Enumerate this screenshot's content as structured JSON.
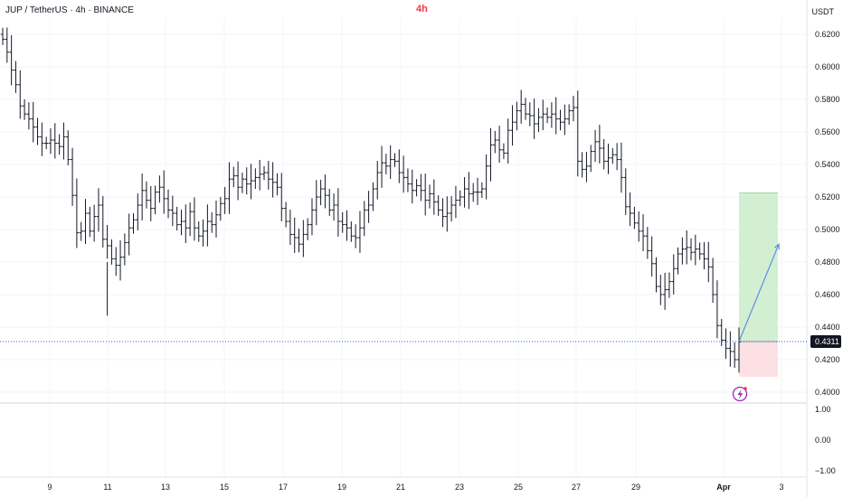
{
  "header": {
    "symbol_line": "JUP / TetherUS · 4h · BINANCE",
    "interval_badge": "4h",
    "currency": "USDT"
  },
  "colors": {
    "bar": "#131722",
    "interval": "#f23645",
    "current_price_line": "#2962ff",
    "target_zone": "#d3efd2",
    "stop_zone": "#fde0e3",
    "projection_arrow": "#5b8ee6",
    "flash_icon": "#9c27b0"
  },
  "icons": {
    "event_marker": "flash-icon"
  },
  "chart_data": {
    "type": "ohlc",
    "title": "",
    "ylim": [
      0.395,
      0.628
    ],
    "price_ticks": [
      "0.6200",
      "0.6000",
      "0.5800",
      "0.5600",
      "0.5400",
      "0.5200",
      "0.5000",
      "0.4800",
      "0.4600",
      "0.4400",
      "0.4200",
      "0.4000"
    ],
    "current_price": 0.4311,
    "current_price_label": "0.4311",
    "date_labels": [
      "9",
      "11",
      "13",
      "15",
      "17",
      "19",
      "21",
      "23",
      "25",
      "27",
      "29",
      "Apr",
      "3"
    ],
    "indicator_ticks": [
      "1.00",
      "0.00",
      "−1.00"
    ],
    "closes": [
      0.617,
      0.609,
      0.598,
      0.589,
      0.576,
      0.571,
      0.568,
      0.563,
      0.557,
      0.553,
      0.553,
      0.555,
      0.553,
      0.551,
      0.557,
      0.543,
      0.521,
      0.498,
      0.499,
      0.51,
      0.499,
      0.508,
      0.515,
      0.494,
      0.49,
      0.482,
      0.478,
      0.483,
      0.492,
      0.501,
      0.506,
      0.515,
      0.524,
      0.518,
      0.513,
      0.523,
      0.526,
      0.519,
      0.512,
      0.51,
      0.503,
      0.505,
      0.501,
      0.511,
      0.501,
      0.496,
      0.499,
      0.505,
      0.503,
      0.509,
      0.516,
      0.519,
      0.531,
      0.533,
      0.526,
      0.531,
      0.528,
      0.53,
      0.532,
      0.534,
      0.535,
      0.531,
      0.529,
      0.526,
      0.513,
      0.505,
      0.497,
      0.495,
      0.491,
      0.497,
      0.503,
      0.512,
      0.52,
      0.525,
      0.521,
      0.512,
      0.515,
      0.505,
      0.503,
      0.501,
      0.496,
      0.495,
      0.501,
      0.512,
      0.515,
      0.525,
      0.535,
      0.541,
      0.539,
      0.543,
      0.542,
      0.535,
      0.532,
      0.528,
      0.524,
      0.527,
      0.524,
      0.518,
      0.522,
      0.517,
      0.512,
      0.508,
      0.51,
      0.515,
      0.518,
      0.52,
      0.525,
      0.522,
      0.523,
      0.523,
      0.525,
      0.539,
      0.552,
      0.555,
      0.549,
      0.547,
      0.561,
      0.566,
      0.573,
      0.577,
      0.571,
      0.57,
      0.565,
      0.569,
      0.571,
      0.569,
      0.571,
      0.568,
      0.566,
      0.568,
      0.573,
      0.575,
      0.542,
      0.537,
      0.539,
      0.548,
      0.554,
      0.55,
      0.542,
      0.544,
      0.546,
      0.543,
      0.532,
      0.514,
      0.51,
      0.504,
      0.499,
      0.496,
      0.487,
      0.479,
      0.465,
      0.46,
      0.463,
      0.468,
      0.476,
      0.485,
      0.488,
      0.489,
      0.486,
      0.488,
      0.485,
      0.482,
      0.477,
      0.46,
      0.441,
      0.432,
      0.427,
      0.425,
      0.42,
      0.431
    ]
  }
}
